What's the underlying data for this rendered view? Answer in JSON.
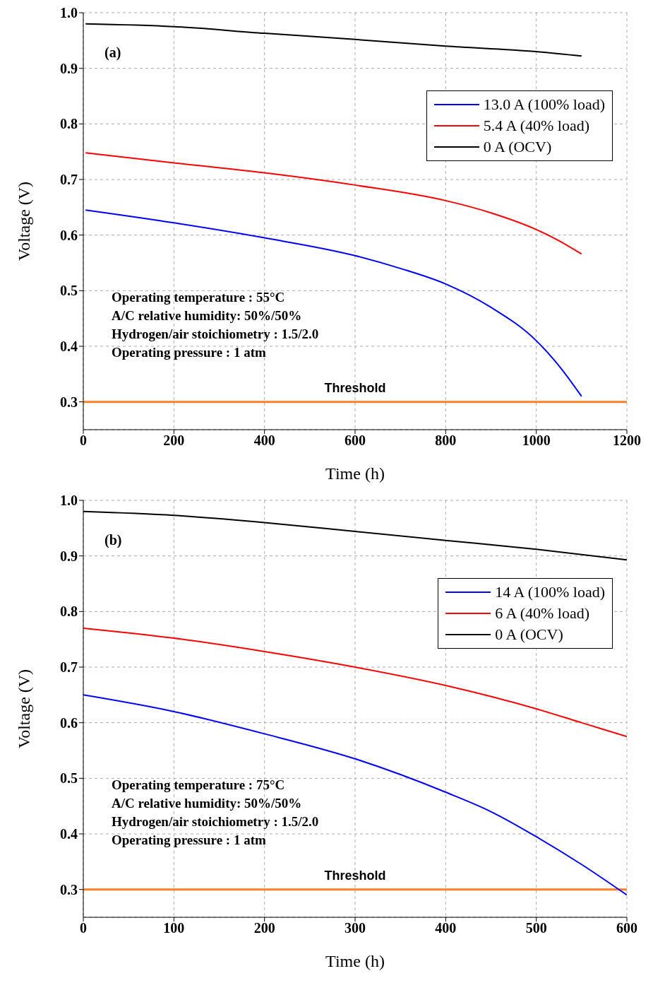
{
  "chart_data": [
    {
      "type": "line",
      "title": "(a)",
      "xlabel": "Time (h)",
      "ylabel": "Voltage (V)",
      "xlim": [
        0,
        1200
      ],
      "xticks": [
        0,
        200,
        400,
        600,
        800,
        1000,
        1200
      ],
      "ylim": [
        0.25,
        1.0
      ],
      "yticks": [
        0.3,
        0.4,
        0.5,
        0.6,
        0.7,
        0.8,
        0.9,
        {
          "value": 1.0,
          "label": "1.0"
        }
      ],
      "grid": true,
      "legend": "top right",
      "marker": "none",
      "line_style": "solid",
      "series": [
        {
          "name": "13.0 A (100% load)",
          "color": "#0000ff",
          "x": [
            5,
            200,
            400,
            600,
            700,
            800,
            900,
            1000,
            1050,
            1100
          ],
          "values": [
            0.645,
            0.622,
            0.595,
            0.563,
            0.54,
            0.512,
            0.47,
            0.41,
            0.365,
            0.31
          ]
        },
        {
          "name": "5.4 A (40% load)",
          "color": "#ff0000",
          "x": [
            5,
            200,
            400,
            600,
            800,
            900,
            1000,
            1050,
            1100
          ],
          "values": [
            0.748,
            0.73,
            0.712,
            0.69,
            0.662,
            0.64,
            0.61,
            0.59,
            0.566
          ]
        },
        {
          "name": "0 A (OCV)",
          "color": "#000000",
          "x": [
            5,
            200,
            400,
            600,
            800,
            1000,
            1100
          ],
          "values": [
            0.98,
            0.975,
            0.963,
            0.952,
            0.94,
            0.93,
            0.922
          ]
        }
      ],
      "ref_lines": [
        {
          "axis": "y",
          "value": 0.3,
          "label": "Threshold",
          "color": "#ff7f27"
        }
      ],
      "annotations": [
        "Operating temperature : 55°C",
        "A/C relative humidity: 50%/50%",
        "Hydrogen/air stoichiometry : 1.5/2.0",
        "Operating pressure : 1 atm"
      ]
    },
    {
      "type": "line",
      "title": "(b)",
      "xlabel": "Time (h)",
      "ylabel": "Voltage (V)",
      "xlim": [
        0,
        600
      ],
      "xticks": [
        0,
        100,
        200,
        300,
        400,
        500,
        600
      ],
      "ylim": [
        0.25,
        1.0
      ],
      "yticks": [
        0.3,
        0.4,
        0.5,
        0.6,
        0.7,
        0.8,
        0.9,
        {
          "value": 1.0,
          "label": "1.0"
        }
      ],
      "grid": true,
      "legend": "top right",
      "marker": "none",
      "line_style": "solid",
      "series": [
        {
          "name": "14 A (100% load)",
          "color": "#0000ff",
          "x": [
            0,
            100,
            200,
            300,
            400,
            450,
            500,
            550,
            600
          ],
          "values": [
            0.65,
            0.62,
            0.58,
            0.535,
            0.475,
            0.44,
            0.395,
            0.345,
            0.29
          ]
        },
        {
          "name": "6 A (40% load)",
          "color": "#ff0000",
          "x": [
            0,
            100,
            200,
            300,
            400,
            500,
            550,
            600
          ],
          "values": [
            0.77,
            0.752,
            0.728,
            0.7,
            0.667,
            0.625,
            0.6,
            0.575
          ]
        },
        {
          "name": "0 A (OCV)",
          "color": "#000000",
          "x": [
            0,
            100,
            200,
            300,
            400,
            500,
            600
          ],
          "values": [
            0.98,
            0.973,
            0.96,
            0.944,
            0.928,
            0.912,
            0.893
          ]
        }
      ],
      "ref_lines": [
        {
          "axis": "y",
          "value": 0.3,
          "label": "Threshold",
          "color": "#ff7f27"
        }
      ],
      "annotations": [
        "Operating temperature : 75°C",
        "A/C relative humidity: 50%/50%",
        "Hydrogen/air stoichiometry : 1.5/2.0",
        "Operating pressure : 1 atm"
      ]
    }
  ]
}
